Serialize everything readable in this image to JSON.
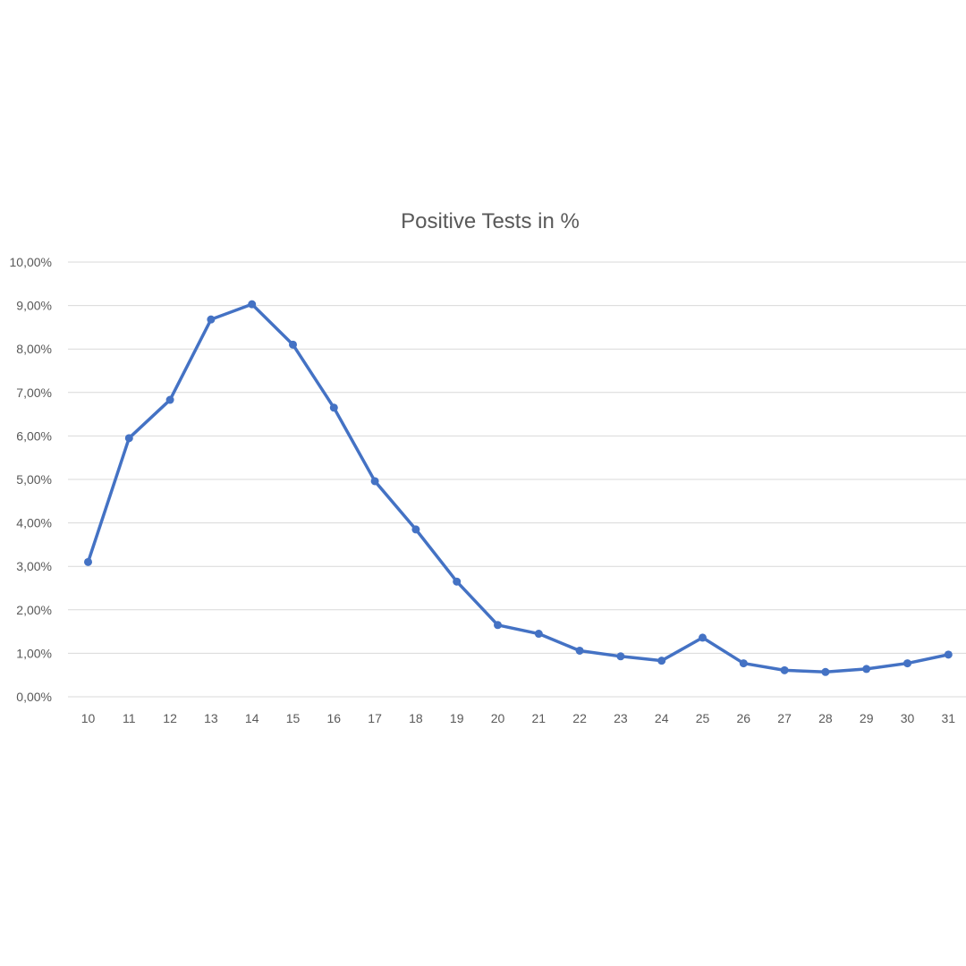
{
  "chart_data": {
    "type": "line",
    "title": "Positive Tests in %",
    "xlabel": "",
    "ylabel": "",
    "x": [
      "10",
      "11",
      "12",
      "13",
      "14",
      "15",
      "16",
      "17",
      "18",
      "19",
      "20",
      "21",
      "22",
      "23",
      "24",
      "25",
      "26",
      "27",
      "28",
      "29",
      "30",
      "31"
    ],
    "series": [
      {
        "values": [
          3.1,
          5.95,
          6.83,
          8.68,
          9.03,
          8.1,
          6.65,
          4.96,
          3.85,
          2.65,
          1.65,
          1.45,
          1.06,
          0.93,
          0.83,
          1.36,
          0.77,
          0.61,
          0.57,
          0.64,
          0.77,
          0.97
        ],
        "color": "#4472C4"
      }
    ],
    "ylim": [
      0,
      10
    ],
    "yticks": [
      0,
      1,
      2,
      3,
      4,
      5,
      6,
      7,
      8,
      9,
      10
    ],
    "ytick_labels": [
      "0,00%",
      "1,00%",
      "2,00%",
      "3,00%",
      "4,00%",
      "5,00%",
      "6,00%",
      "7,00%",
      "8,00%",
      "9,00%",
      "10,00%"
    ],
    "grid": true,
    "legend": false,
    "colors": {
      "line": "#4472C4",
      "grid": "#d9d9d9",
      "text": "#595959"
    }
  }
}
